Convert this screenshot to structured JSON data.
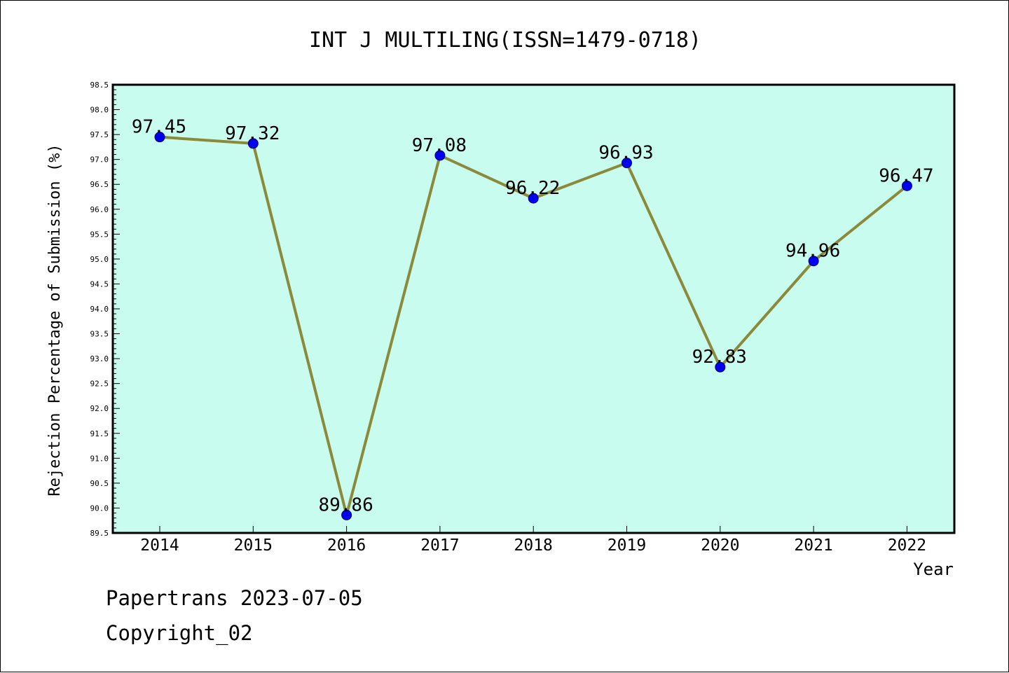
{
  "chart_data": {
    "type": "line",
    "title": "INT J MULTILING(ISSN=1479-0718)",
    "xlabel": "Year",
    "ylabel": "Rejection Percentage of Submission (%)",
    "categories": [
      "2014",
      "2015",
      "2016",
      "2017",
      "2018",
      "2019",
      "2020",
      "2021",
      "2022"
    ],
    "values": [
      97.45,
      97.32,
      89.86,
      97.08,
      96.22,
      96.93,
      92.83,
      94.96,
      96.47
    ],
    "data_labels": [
      "97.45",
      "97.32",
      "89.86",
      "97.08",
      "96.22",
      "96.93",
      "92.83",
      "94.96",
      "96.47"
    ],
    "ylim": [
      89.5,
      98.5
    ],
    "y_ticks": [
      "89.5",
      "90.0",
      "90.5",
      "91.0",
      "91.5",
      "92.0",
      "92.5",
      "93.0",
      "93.5",
      "94.0",
      "94.5",
      "95.0",
      "95.5",
      "96.0",
      "96.5",
      "97.0",
      "97.5",
      "98.0",
      "98.5"
    ],
    "grid": false,
    "legend": "none",
    "colors": {
      "plot_background": "#c8fcee",
      "line": "#8b8a3a",
      "marker": "#0000ee",
      "marker_edge": "#000080"
    }
  },
  "footer": {
    "line1": "Papertrans 2023-07-05",
    "line2": "Copyright_02"
  }
}
